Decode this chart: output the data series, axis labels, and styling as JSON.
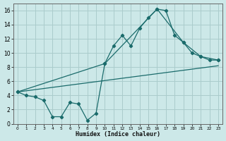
{
  "xlabel": "Humidex (Indice chaleur)",
  "background_color": "#cce8e8",
  "grid_color": "#aacccc",
  "line_color": "#1a6b6b",
  "xlim": [
    -0.5,
    23.5
  ],
  "ylim": [
    0,
    17
  ],
  "xticks": [
    0,
    1,
    2,
    3,
    4,
    5,
    6,
    7,
    8,
    9,
    10,
    11,
    12,
    13,
    14,
    15,
    16,
    17,
    18,
    19,
    20,
    21,
    22,
    23
  ],
  "yticks": [
    0,
    2,
    4,
    6,
    8,
    10,
    12,
    14,
    16
  ],
  "line1_x": [
    0,
    1,
    2,
    3,
    4,
    5,
    6,
    7,
    8,
    9,
    10,
    11,
    12,
    13,
    14,
    15,
    16,
    17,
    18,
    19,
    20,
    21,
    22,
    23
  ],
  "line1_y": [
    4.5,
    4.0,
    3.8,
    3.3,
    1.0,
    1.0,
    3.0,
    2.8,
    0.5,
    1.5,
    8.5,
    11.0,
    12.5,
    11.0,
    13.5,
    15.0,
    16.2,
    16.0,
    12.5,
    11.5,
    10.0,
    9.5,
    9.0,
    9.0
  ],
  "line2_x": [
    0,
    10,
    16,
    19,
    21,
    23
  ],
  "line2_y": [
    4.5,
    8.5,
    16.2,
    11.5,
    9.5,
    9.0
  ],
  "line3_x": [
    0,
    23
  ],
  "line3_y": [
    4.5,
    8.2
  ]
}
